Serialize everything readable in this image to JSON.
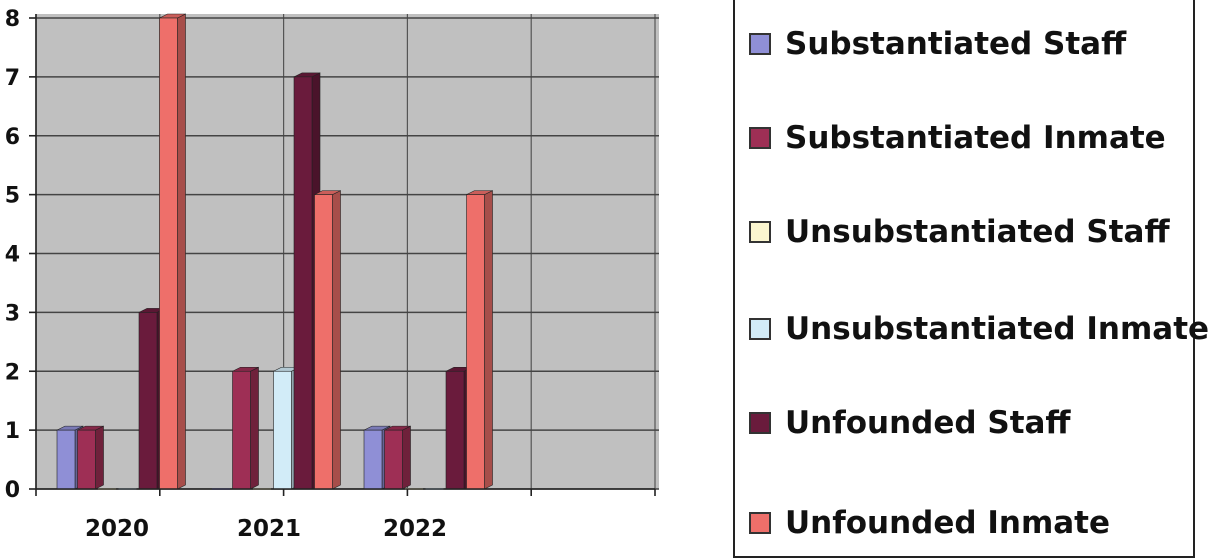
{
  "chart_data": {
    "type": "bar",
    "categories": [
      "2020",
      "2021",
      "2022"
    ],
    "ylim": [
      0,
      8
    ],
    "yticks": [
      "0",
      "1",
      "2",
      "3",
      "4",
      "5",
      "6",
      "7",
      "8"
    ],
    "grid": true,
    "legend_position": "right",
    "series": [
      {
        "name": "Substantiated Staff",
        "color": "#8f8fd6",
        "values": [
          1,
          0,
          1
        ]
      },
      {
        "name": "Substantiated Inmate",
        "color": "#9e2f55",
        "values": [
          1,
          2,
          1
        ]
      },
      {
        "name": "Unsubstantiated Staff",
        "color": "#fbf6cf",
        "values": [
          0,
          0,
          0
        ]
      },
      {
        "name": "Unsubstantiated Inmate",
        "color": "#d2ecf8",
        "values": [
          0,
          2,
          0
        ]
      },
      {
        "name": "Unfounded Staff",
        "color": "#6a1b3c",
        "values": [
          3,
          7,
          2
        ]
      },
      {
        "name": "Unfounded Inmate",
        "color": "#ee6f6a",
        "values": [
          8,
          5,
          5
        ]
      }
    ]
  }
}
